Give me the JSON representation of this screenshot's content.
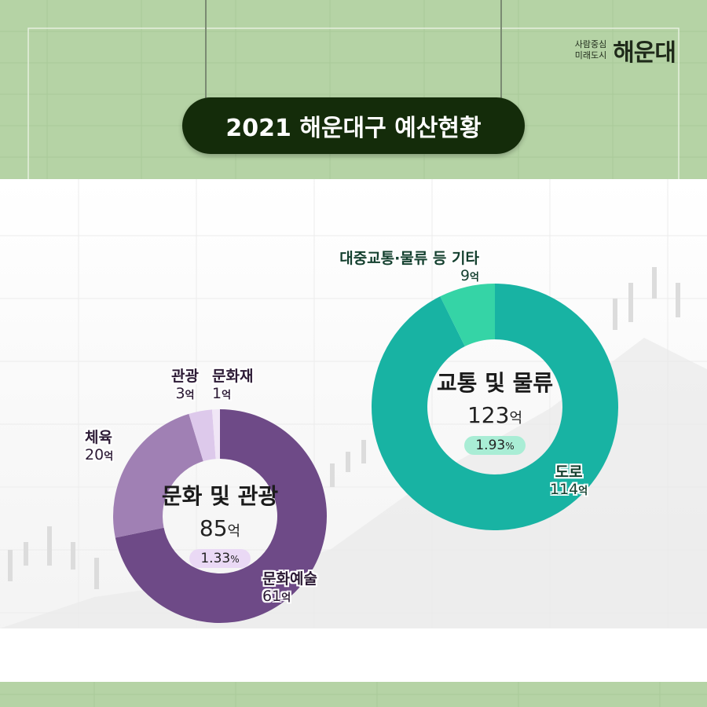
{
  "header": {
    "logo_tagline_1": "사람중심",
    "logo_tagline_2": "미래도시",
    "logo_name": "해운대",
    "title": "2021 해운대구 예산현황"
  },
  "colors": {
    "culture_dark": "#6e4a87",
    "culture_mid": "#a080b4",
    "culture_light": "#ddc9eb",
    "culture_lightest": "#f0e6f6",
    "culture_pill": "#ead9f5",
    "transport_main": "#18b3a3",
    "transport_light": "#35d4a6",
    "transport_pill": "#a9edd5"
  },
  "chart_data": [
    {
      "type": "donut",
      "title": "문화 및 관광",
      "total": 85,
      "total_label": "85",
      "unit": "억",
      "percent_label": "1.33",
      "percent_unit": "%",
      "categories": [
        "문화예술",
        "체육",
        "관광",
        "문화재"
      ],
      "values": [
        61,
        20,
        3,
        1
      ],
      "value_labels": [
        "61",
        "20",
        "3",
        "1"
      ]
    },
    {
      "type": "donut",
      "title": "교통 및 물류",
      "total": 123,
      "total_label": "123",
      "unit": "억",
      "percent_label": "1.93",
      "percent_unit": "%",
      "categories": [
        "도로",
        "대중교통·물류 등 기타"
      ],
      "values": [
        114,
        9
      ],
      "value_labels": [
        "114",
        "9"
      ]
    }
  ]
}
